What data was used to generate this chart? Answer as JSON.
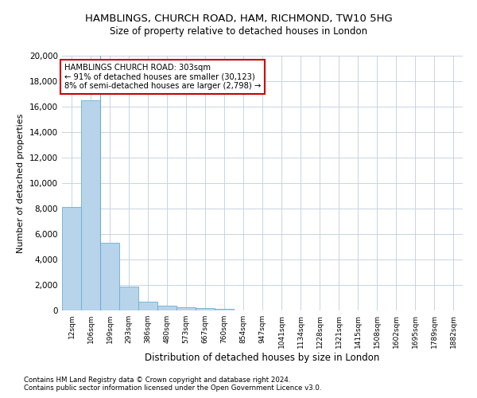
{
  "title": "HAMBLINGS, CHURCH ROAD, HAM, RICHMOND, TW10 5HG",
  "subtitle": "Size of property relative to detached houses in London",
  "xlabel": "Distribution of detached houses by size in London",
  "ylabel": "Number of detached properties",
  "categories": [
    "12sqm",
    "106sqm",
    "199sqm",
    "293sqm",
    "386sqm",
    "480sqm",
    "573sqm",
    "667sqm",
    "760sqm",
    "854sqm",
    "947sqm",
    "1041sqm",
    "1134sqm",
    "1228sqm",
    "1321sqm",
    "1415sqm",
    "1508sqm",
    "1602sqm",
    "1695sqm",
    "1789sqm",
    "1882sqm"
  ],
  "values": [
    8100,
    16500,
    5300,
    1850,
    700,
    370,
    280,
    200,
    150,
    0,
    0,
    0,
    0,
    0,
    0,
    0,
    0,
    0,
    0,
    0,
    0
  ],
  "bar_color": "#b8d4ea",
  "bar_edge_color": "#6aaed6",
  "annotation_box_color": "#cc0000",
  "annotation_text": "HAMBLINGS CHURCH ROAD: 303sqm\n← 91% of detached houses are smaller (30,123)\n8% of semi-detached houses are larger (2,798) →",
  "property_line_x": 2,
  "ylim": [
    0,
    20000
  ],
  "yticks": [
    0,
    2000,
    4000,
    6000,
    8000,
    10000,
    12000,
    14000,
    16000,
    18000,
    20000
  ],
  "footnote1": "Contains HM Land Registry data © Crown copyright and database right 2024.",
  "footnote2": "Contains public sector information licensed under the Open Government Licence v3.0.",
  "background_color": "#ffffff",
  "grid_color": "#c8d4e0"
}
